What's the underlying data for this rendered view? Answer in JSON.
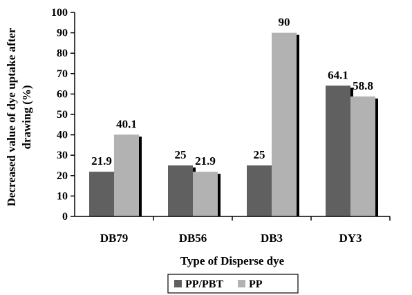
{
  "chart_data": {
    "type": "bar",
    "categories": [
      "DB79",
      "DB56",
      "DB3",
      "DY3"
    ],
    "series": [
      {
        "name": "PP/PBT",
        "values": [
          21.9,
          25,
          25,
          64.1
        ],
        "color": "#606060"
      },
      {
        "name": "PP",
        "values": [
          40.1,
          21.9,
          90,
          58.8
        ],
        "color": "#b2b2b2"
      }
    ],
    "data_labels": [
      [
        "21.9",
        "25",
        "25",
        "64.1"
      ],
      [
        "40.1",
        "21.9",
        "90",
        "58.8"
      ]
    ],
    "ylim": [
      0,
      100
    ],
    "yticks": [
      0,
      10,
      20,
      30,
      40,
      50,
      60,
      70,
      80,
      90,
      100
    ],
    "xlabel": "Type of Disperse dye",
    "ylabel_lines": [
      "Decreased value of dye uptake after",
      "drawing (%)"
    ],
    "legend_position": "bottom",
    "grid": false,
    "shadow_color": "#000000"
  }
}
